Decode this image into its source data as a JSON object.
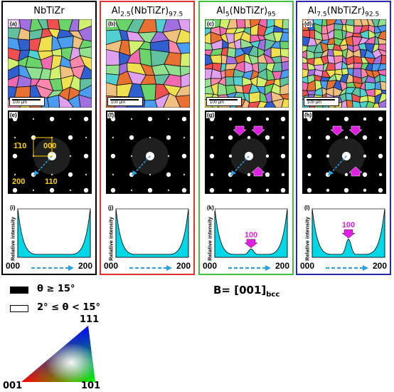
{
  "columns": [
    {
      "title_main": "NbTiZr",
      "title_sub": "",
      "title_post": "",
      "title_sub2": "",
      "border_color": "#000000",
      "labels": [
        "(a)",
        "(e)",
        "(i)"
      ],
      "scale_text": "100 µm",
      "peak_label": "",
      "saed_spots": [
        "1̄10",
        "000",
        "200",
        "110"
      ]
    },
    {
      "title_main": "Al",
      "title_sub": "2.5",
      "title_post": "(NbTiZr)",
      "title_sub2": "97.5",
      "border_color": "#e03030",
      "labels": [
        "(b)",
        "(f)",
        "(j)"
      ],
      "scale_text": "100 µm",
      "peak_label": ""
    },
    {
      "title_main": "Al",
      "title_sub": "5",
      "title_post": "(NbTiZr)",
      "title_sub2": "95",
      "border_color": "#3cc43c",
      "labels": [
        "(c)",
        "(g)",
        "(k)"
      ],
      "scale_text": "100 µm",
      "peak_label": "100"
    },
    {
      "title_main": "Al",
      "title_sub": "7.5",
      "title_post": "(NbTiZr)",
      "title_sub2": "92.5",
      "border_color": "#2a2aa8",
      "labels": [
        "(d)",
        "(h)",
        "(l)"
      ],
      "scale_text": "100 µm",
      "peak_label": "100"
    }
  ],
  "profile": {
    "ylabel": "Relative intensity",
    "x_start": "000",
    "x_end": "200"
  },
  "legend": {
    "high_angle": "θ ≥ 15°",
    "low_angle": "2° ≤ θ < 15°"
  },
  "zone_axis": {
    "main": "B= [001]",
    "sub": "bcc"
  },
  "ipf": {
    "top": "111",
    "left": "001",
    "right": "101"
  },
  "colors": {
    "profile_fill": "#00d8e8",
    "arrow_magenta": "#e020e0",
    "arrow_blue": "#2aa0e0",
    "spot_label": "#ffd400"
  }
}
